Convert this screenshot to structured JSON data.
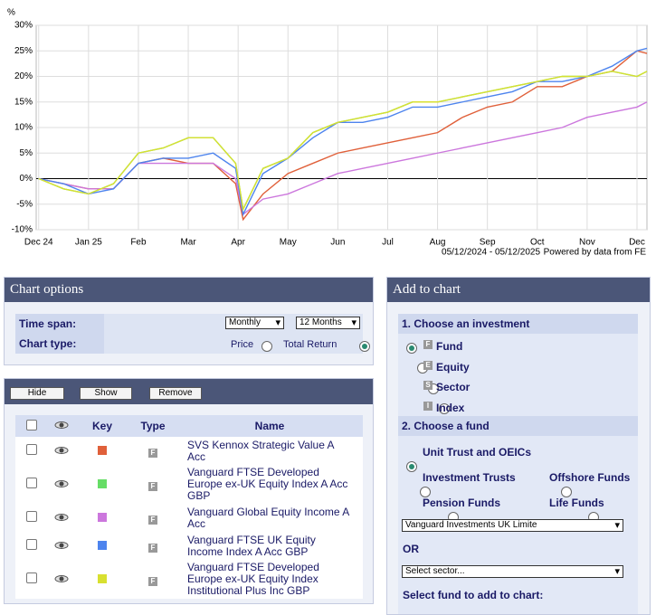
{
  "chart_data": {
    "type": "line",
    "y_label": "%",
    "date_range": "05/12/2024 - 05/12/2025",
    "source": "Powered by data from FE",
    "x": [
      0,
      0.5,
      1,
      1.5,
      2,
      2.5,
      3,
      3.5,
      3.95,
      4.1,
      4.5,
      5,
      5.5,
      6,
      6.5,
      7,
      7.5,
      8,
      8.5,
      9,
      9.5,
      10,
      10.5,
      11,
      11.5,
      12,
      12.2
    ],
    "xlim": [
      -0.05,
      12.2
    ],
    "xticks": [
      {
        "value": 0,
        "label": "Dec 24"
      },
      {
        "value": 1,
        "label": "Jan 25"
      },
      {
        "value": 2,
        "label": "Feb"
      },
      {
        "value": 3,
        "label": "Mar"
      },
      {
        "value": 4,
        "label": "Apr"
      },
      {
        "value": 5,
        "label": "May"
      },
      {
        "value": 6,
        "label": "Jun"
      },
      {
        "value": 7,
        "label": "Jul"
      },
      {
        "value": 8,
        "label": "Aug"
      },
      {
        "value": 9,
        "label": "Sep"
      },
      {
        "value": 10,
        "label": "Oct"
      },
      {
        "value": 11,
        "label": "Nov"
      },
      {
        "value": 12,
        "label": "Dec"
      }
    ],
    "ylim": [
      -10,
      30
    ],
    "yticks": [
      {
        "value": -10,
        "label": "-10%"
      },
      {
        "value": -5,
        "label": "-5%"
      },
      {
        "value": 0,
        "label": "0%"
      },
      {
        "value": 5,
        "label": "5%"
      },
      {
        "value": 10,
        "label": "10%"
      },
      {
        "value": 15,
        "label": "15%"
      },
      {
        "value": 20,
        "label": "20%"
      },
      {
        "value": 25,
        "label": "25%"
      },
      {
        "value": 30,
        "label": "30%"
      }
    ],
    "grid": true,
    "series": [
      {
        "name": "SVS Kennox Strategic Value A Acc",
        "color": "#e0603a",
        "values": [
          0,
          -1,
          -2,
          -2,
          3,
          4,
          3,
          3,
          -1,
          -8,
          -3,
          1,
          3,
          5,
          6,
          7,
          8,
          9,
          12,
          14,
          15,
          18,
          18,
          20,
          21,
          25,
          24.5
        ]
      },
      {
        "name": "Vanguard FTSE Developed Europe ex-UK Equity Index A Acc GBP",
        "color": "#66dd66",
        "values": [
          0,
          -2,
          -3,
          -1,
          5,
          6,
          8,
          8,
          3,
          -6,
          2,
          4,
          9,
          11,
          12,
          13,
          15,
          15,
          16,
          17,
          18,
          19,
          20,
          20,
          21,
          20,
          21
        ]
      },
      {
        "name": "Vanguard Global Equity Income A Acc",
        "color": "#cc77dd",
        "values": [
          0,
          -1,
          -2,
          -2,
          3,
          3,
          3,
          3,
          0,
          -7,
          -4,
          -3,
          -1,
          1,
          2,
          3,
          4,
          5,
          6,
          7,
          8,
          9,
          10,
          12,
          13,
          14,
          15
        ]
      },
      {
        "name": "Vanguard FTSE UK Equity Income Index A Acc GBP",
        "color": "#4d84ee",
        "values": [
          0,
          -1,
          -3,
          -2,
          3,
          4,
          4,
          5,
          2,
          -7,
          1,
          4,
          8,
          11,
          11,
          12,
          14,
          14,
          15,
          16,
          17,
          19,
          19,
          20,
          22,
          25,
          25.5
        ]
      },
      {
        "name": "Vanguard FTSE Developed Europe ex-UK Equity Index Institutional Plus Inc GBP",
        "color": "#d8e030",
        "values": [
          0,
          -2,
          -3,
          -1,
          5,
          6,
          8,
          8,
          3,
          -6,
          2,
          4,
          9,
          11,
          12,
          13,
          15,
          15,
          16,
          17,
          18,
          19,
          20,
          20,
          21,
          20,
          21
        ]
      }
    ]
  },
  "chart_options": {
    "title": "Chart options",
    "time_span_label": "Time span:",
    "interval": "Monthly",
    "period": "12 Months",
    "chart_type_label": "Chart type:",
    "price": "Price",
    "total_return": "Total Return"
  },
  "fund_list": {
    "buttons": [
      "Hide",
      "Show",
      "Remove"
    ],
    "headers": [
      "Key",
      "Type",
      "Name"
    ],
    "types": [
      "F",
      "F",
      "F",
      "F",
      "F"
    ]
  },
  "add_to_chart": {
    "title": "Add to chart",
    "step1": "1. Choose an investment",
    "investments": [
      {
        "icon": "F",
        "label": "Fund"
      },
      {
        "icon": "E",
        "label": "Equity"
      },
      {
        "icon": "S",
        "label": "Sector"
      },
      {
        "icon": "I",
        "label": "Index"
      }
    ],
    "step2": "2. Choose a fund",
    "fund_types": [
      "Unit Trust and OEICs",
      "Investment Trusts",
      "Offshore Funds",
      "Pension Funds",
      "Life Funds"
    ],
    "provider": "Vanguard Investments UK Limite",
    "or": "OR",
    "sector": "Select sector...",
    "select_fund": "Select fund to add to chart:"
  }
}
